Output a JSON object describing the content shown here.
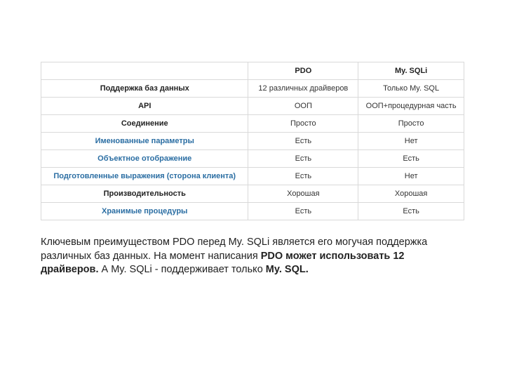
{
  "table": {
    "headers": {
      "blank": "",
      "col1": "PDO",
      "col2": "My. SQLi"
    },
    "rows": [
      {
        "label": "Поддержка баз данных",
        "link": false,
        "pdo": "12 различных драйверов",
        "mysqli": "Только My. SQL"
      },
      {
        "label": "API",
        "link": false,
        "pdo": "ООП",
        "mysqli": "ООП+процедурная часть"
      },
      {
        "label": "Соединение",
        "link": false,
        "pdo": "Просто",
        "mysqli": "Просто"
      },
      {
        "label": "Именованные параметры",
        "link": true,
        "pdo": "Есть",
        "mysqli": "Нет"
      },
      {
        "label": "Объектное отображение",
        "link": true,
        "pdo": "Есть",
        "mysqli": "Есть"
      },
      {
        "label": "Подготовленные выражения (сторона клиента)",
        "link": true,
        "pdo": "Есть",
        "mysqli": "Нет"
      },
      {
        "label": "Производительность",
        "link": false,
        "pdo": "Хорошая",
        "mysqli": "Хорошая"
      },
      {
        "label": "Хранимые процедуры",
        "link": true,
        "pdo": "Есть",
        "mysqli": "Есть"
      }
    ]
  },
  "paragraph": {
    "t1": "Ключевым преимуществом PDO перед My. SQLi является его могучая поддержка различных баз данных. На момент написания ",
    "b1": " PDO может использовать 12 драйверов.",
    "t2": "  А My. SQLi - поддерживает только ",
    "b2": " My. SQL.",
    "t3": ""
  },
  "colors": {
    "link": "#2b6ea3",
    "border": "#d9d9d9",
    "text": "#222222"
  }
}
